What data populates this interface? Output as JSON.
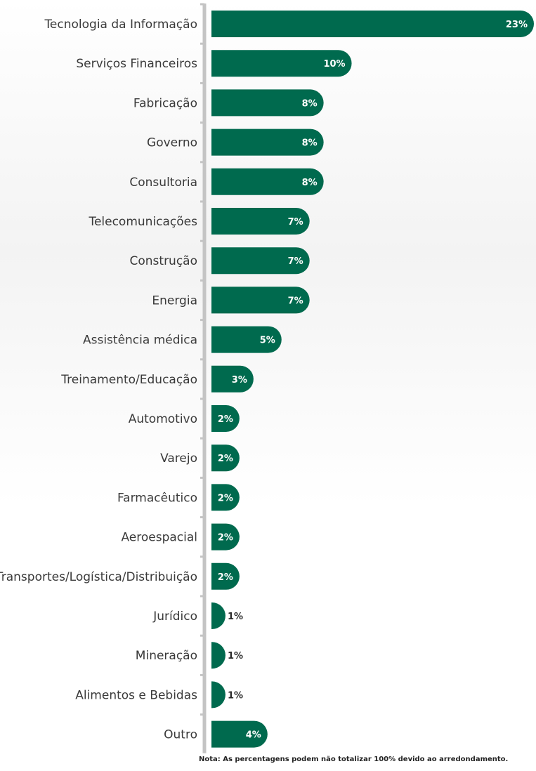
{
  "chart_data": {
    "type": "bar",
    "orientation": "horizontal",
    "categories": [
      "Tecnologia da Informação",
      "Serviços Financeiros",
      "Fabricação",
      "Governo",
      "Consultoria",
      "Telecomunicações",
      "Construção",
      "Energia",
      "Assistência médica",
      "Treinamento/Educação",
      "Automotivo",
      "Varejo",
      "Farmacêutico",
      "Aeroespacial",
      "Transportes/Logística/Distribuição",
      "Jurídico",
      "Mineração",
      "Alimentos e Bebidas",
      "Outro"
    ],
    "values": [
      23,
      10,
      8,
      8,
      8,
      7,
      7,
      7,
      5,
      3,
      2,
      2,
      2,
      2,
      2,
      1,
      1,
      1,
      4
    ],
    "data_labels": [
      "23%",
      "10%",
      "8%",
      "8%",
      "8%",
      "7%",
      "7%",
      "7%",
      "5%",
      "3%",
      "2%",
      "2%",
      "2%",
      "2%",
      "2%",
      "1%",
      "1%",
      "1%",
      "4%"
    ],
    "xlim": [
      0,
      23
    ],
    "bar_color": "#006a4e",
    "inside_label_color": "#ffffff",
    "outside_label_color": "#2a2a2a",
    "axis_color": "#c4c4c4",
    "grid": false
  },
  "note": "Nota: As percentagens podem não totalizar 100% devido ao arredondamento."
}
